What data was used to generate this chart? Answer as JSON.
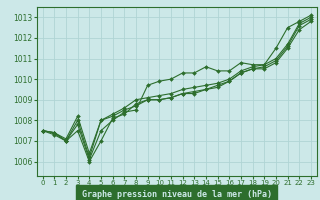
{
  "title": "Graphe pression niveau de la mer (hPa)",
  "bg_color": "#cce8e8",
  "plot_bg_color": "#cce8e8",
  "label_bg_color": "#2d6e2d",
  "label_text_color": "#cce8e8",
  "grid_color": "#b0d4d4",
  "line_color": "#2d6e2d",
  "marker_color": "#2d6e2d",
  "xlim": [
    -0.5,
    23.5
  ],
  "ylim": [
    1005.3,
    1013.5
  ],
  "xticks": [
    0,
    1,
    2,
    3,
    4,
    5,
    6,
    7,
    8,
    9,
    10,
    11,
    12,
    13,
    14,
    15,
    16,
    17,
    18,
    19,
    20,
    21,
    22,
    23
  ],
  "yticks": [
    1006,
    1007,
    1008,
    1009,
    1010,
    1011,
    1012,
    1013
  ],
  "series": [
    [
      1007.5,
      1007.4,
      1007.0,
      1007.8,
      1006.1,
      1007.5,
      1008.0,
      1008.4,
      1008.5,
      1009.7,
      1009.9,
      1010.0,
      1010.3,
      1010.3,
      1010.6,
      1010.4,
      1010.4,
      1010.8,
      1010.7,
      1010.7,
      1011.5,
      1012.5,
      1012.8,
      1013.1
    ],
    [
      1007.5,
      1007.4,
      1007.0,
      1007.5,
      1006.0,
      1007.0,
      1008.1,
      1008.3,
      1008.8,
      1009.0,
      1009.0,
      1009.1,
      1009.3,
      1009.3,
      1009.5,
      1009.7,
      1009.9,
      1010.3,
      1010.5,
      1010.5,
      1010.8,
      1011.5,
      1012.4,
      1012.8
    ],
    [
      1007.5,
      1007.3,
      1007.0,
      1008.0,
      1006.2,
      1008.0,
      1008.2,
      1008.5,
      1008.7,
      1009.0,
      1009.0,
      1009.1,
      1009.3,
      1009.4,
      1009.5,
      1009.6,
      1009.9,
      1010.3,
      1010.5,
      1010.6,
      1010.9,
      1011.6,
      1012.6,
      1012.9
    ],
    [
      1007.5,
      1007.4,
      1007.1,
      1008.2,
      1006.4,
      1008.0,
      1008.3,
      1008.6,
      1009.0,
      1009.1,
      1009.2,
      1009.3,
      1009.5,
      1009.6,
      1009.7,
      1009.8,
      1010.0,
      1010.4,
      1010.6,
      1010.7,
      1011.0,
      1011.7,
      1012.7,
      1013.0
    ]
  ]
}
